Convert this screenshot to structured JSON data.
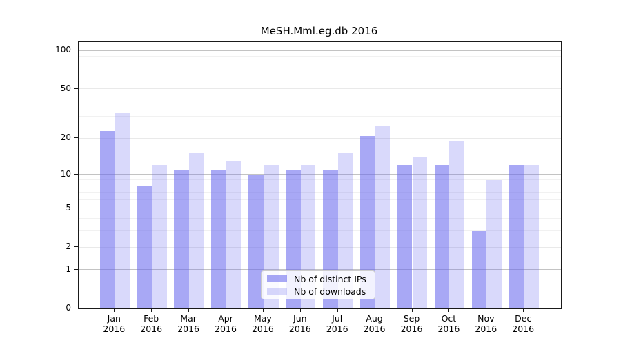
{
  "chart_data": {
    "type": "bar",
    "title": "MeSH.Mml.eg.db 2016",
    "categories": [
      "Jan 2016",
      "Feb 2016",
      "Mar 2016",
      "Apr 2016",
      "May 2016",
      "Jun 2016",
      "Jul 2016",
      "Aug 2016",
      "Sep 2016",
      "Oct 2016",
      "Nov 2016",
      "Dec 2016"
    ],
    "series": [
      {
        "name": "Nb of distinct IPs",
        "color": "rgba(102,102,238,0.57)",
        "values": [
          23,
          8,
          11,
          11,
          10,
          11,
          11,
          21,
          12,
          12,
          3,
          12
        ]
      },
      {
        "name": "Nb of downloads",
        "color": "rgba(102,102,238,0.25)",
        "values": [
          32,
          12,
          15,
          13,
          12,
          12,
          15,
          25,
          14,
          19,
          9,
          12
        ]
      }
    ],
    "xlabel": "",
    "ylabel": "",
    "y_scale": "log1p",
    "y_ticks": [
      0,
      1,
      2,
      5,
      10,
      20,
      50,
      100
    ],
    "y_major_gridlines": [
      1,
      10,
      100
    ],
    "y_mid_gridlines": [
      2,
      5,
      20,
      50
    ],
    "y_minor_gridlines": [
      3,
      4,
      6,
      7,
      8,
      9,
      30,
      40,
      60,
      70,
      80,
      90
    ],
    "ylim": [
      0,
      116
    ],
    "grid": "on",
    "legend_position": "lower-center-inside"
  }
}
